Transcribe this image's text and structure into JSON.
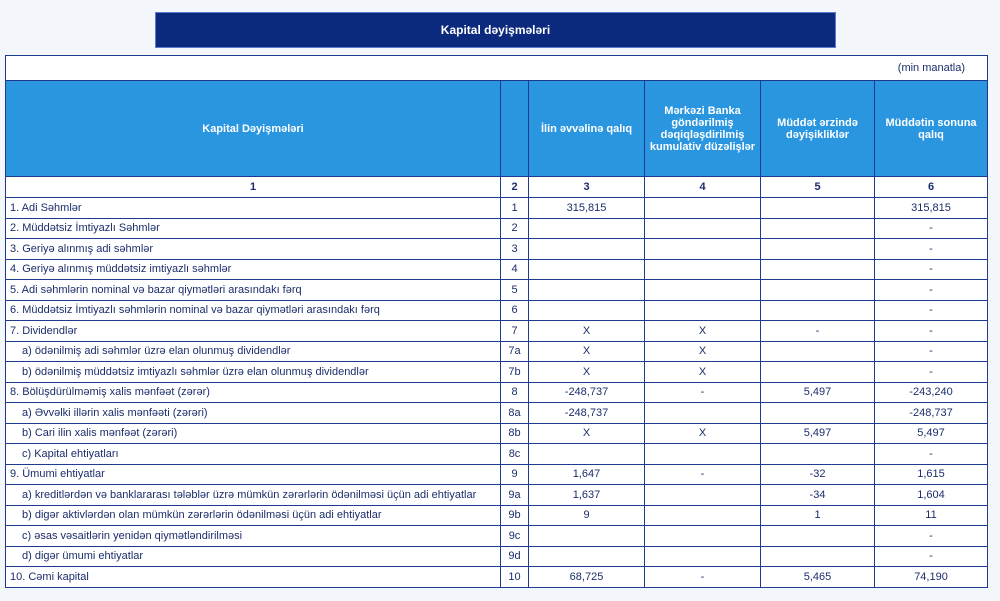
{
  "header": {
    "title": "Kapital dəyişmələri"
  },
  "table": {
    "unit": "(min manatla)",
    "columns": [
      "Kapital Dəyişmələri",
      null,
      "İlin əvvəlinə qalıq",
      "Mərkəzi Banka göndərilmiş dəqiqləşdirilmiş kumulativ düzəlişlər",
      "Müddət ərzində dəyişikliklər",
      "Müddətin sonuna qalıq"
    ],
    "column_numbers": [
      "1",
      "2",
      "3",
      "4",
      "5",
      "6"
    ],
    "rows": [
      [
        "1. Adi Səhmlər",
        "1",
        "315,815",
        null,
        null,
        "315,815"
      ],
      [
        "2. Müddətsiz İmtiyazlı Səhmlər",
        "2",
        null,
        null,
        null,
        "-"
      ],
      [
        "3. Geriyə alınmış adi səhmlər",
        "3",
        null,
        null,
        null,
        "-"
      ],
      [
        "4. Geriyə alınmış müddətsiz imtiyazlı səhmlər",
        "4",
        null,
        null,
        null,
        "-"
      ],
      [
        "5. Adi səhmlərin nominal və bazar qiymətləri arasındakı fərq",
        "5",
        null,
        null,
        null,
        "-"
      ],
      [
        "6. Müddətsiz İmtiyazlı səhmlərin nominal və bazar qiymətləri arasındakı fərq",
        "6",
        null,
        null,
        null,
        "-"
      ],
      [
        "7. Dividendlər",
        "7",
        "X",
        "X",
        "-",
        "-"
      ],
      [
        "a) ödənilmiş adi səhmlər üzrə elan olunmuş dividendlər",
        "7a",
        "X",
        "X",
        null,
        "-"
      ],
      [
        "b) ödənilmiş müddətsiz imtiyazlı səhmlər üzrə elan olunmuş dividendlər",
        "7b",
        "X",
        "X",
        null,
        "-"
      ],
      [
        "8. Bölüşdürülməmiş xalis mənfəət (zərər)",
        "8",
        "-248,737",
        "-",
        "5,497",
        "-243,240"
      ],
      [
        "a) Əvvəlki illərin xalis mənfəəti (zərəri)",
        "8a",
        "-248,737",
        null,
        null,
        "-248,737"
      ],
      [
        "b) Cari ilin xalis mənfəət (zərəri)",
        "8b",
        "X",
        "X",
        "5,497",
        "5,497"
      ],
      [
        "c) Kapital ehtiyatları",
        "8c",
        null,
        null,
        null,
        "-"
      ],
      [
        "9. Ümumi ehtiyatlar",
        "9",
        "1,647",
        "-",
        "-32",
        "1,615"
      ],
      [
        "a) kreditlərdən və banklararası  tələblər üzrə mümkün zərərlərin ödənilməsi üçün adi ehtiyatlar",
        "9a",
        "1,637",
        null,
        "-34",
        "1,604"
      ],
      [
        "b) digər aktivlərdən olan mümkün zərərlərin ödənilməsi üçün adi ehtiyatlar",
        "9b",
        "9",
        null,
        "1",
        "11"
      ],
      [
        "c) əsas vəsaitlərin yenidən qiymətləndirilməsi",
        "9c",
        null,
        null,
        null,
        "-"
      ],
      [
        "d) digər ümumi ehtiyatlar",
        "9d",
        null,
        null,
        null,
        "-"
      ],
      [
        "10. Cəmi kapital",
        "10",
        "68,725",
        "-",
        "5,465",
        "74,190"
      ]
    ]
  }
}
